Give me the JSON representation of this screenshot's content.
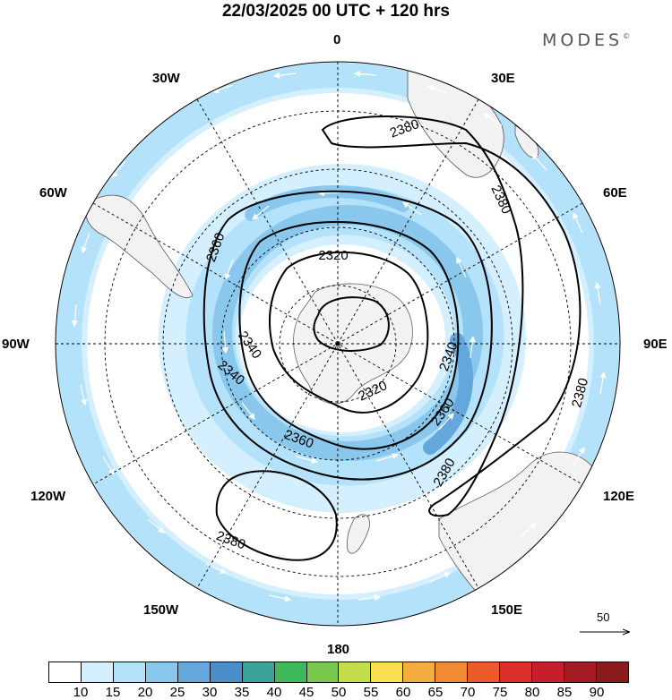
{
  "title": "22/03/2025  00 UTC  + 120 hrs",
  "brand": {
    "name": "MODES",
    "mark": "©"
  },
  "longitude_labels": {
    "top": "0",
    "lon_30e": "30E",
    "lon_60e": "60E",
    "right": "90E",
    "lon_120e": "120E",
    "lon_150e": "150E",
    "bottom": "180",
    "lon_150w": "150W",
    "lon_120w": "120W",
    "left": "90W",
    "lon_60w": "60W",
    "lon_30w": "30W"
  },
  "contours": {
    "c2320_upper": "2320",
    "c2320_lower": "2320",
    "c2340_left": "2340",
    "c2340_lower_left": "2340",
    "c2340_right": "2340",
    "c2360_left": "2360",
    "c2360_bottom": "2360",
    "c2360_right": "2360",
    "c2380_top": "2380",
    "c2380_upper_right": "2380",
    "c2380_right": "2380",
    "c2380_lower_right": "2380",
    "c2380_lower_left": "2380"
  },
  "wind_reference": {
    "value": "50"
  },
  "legend": {
    "ticks": [
      "10",
      "15",
      "20",
      "25",
      "30",
      "35",
      "40",
      "45",
      "50",
      "55",
      "60",
      "65",
      "70",
      "75",
      "80",
      "85",
      "90"
    ],
    "colors": [
      "#ffffff",
      "#d4efff",
      "#b3e2fa",
      "#89c8ec",
      "#63a7dc",
      "#4a8fc9",
      "#3ba39a",
      "#3fb85c",
      "#7bc850",
      "#c3dd4c",
      "#f8e04e",
      "#f5ad3f",
      "#f08a35",
      "#ea5a2b",
      "#dc2f2a",
      "#c51f2c",
      "#a31a22",
      "#8a1a1c"
    ]
  },
  "colors": {
    "land": "#f2f2f2",
    "shade_15": "#d4efff",
    "shade_20": "#b3e2fa",
    "shade_25": "#89c8ec",
    "shade_30": "#63a7dc"
  }
}
